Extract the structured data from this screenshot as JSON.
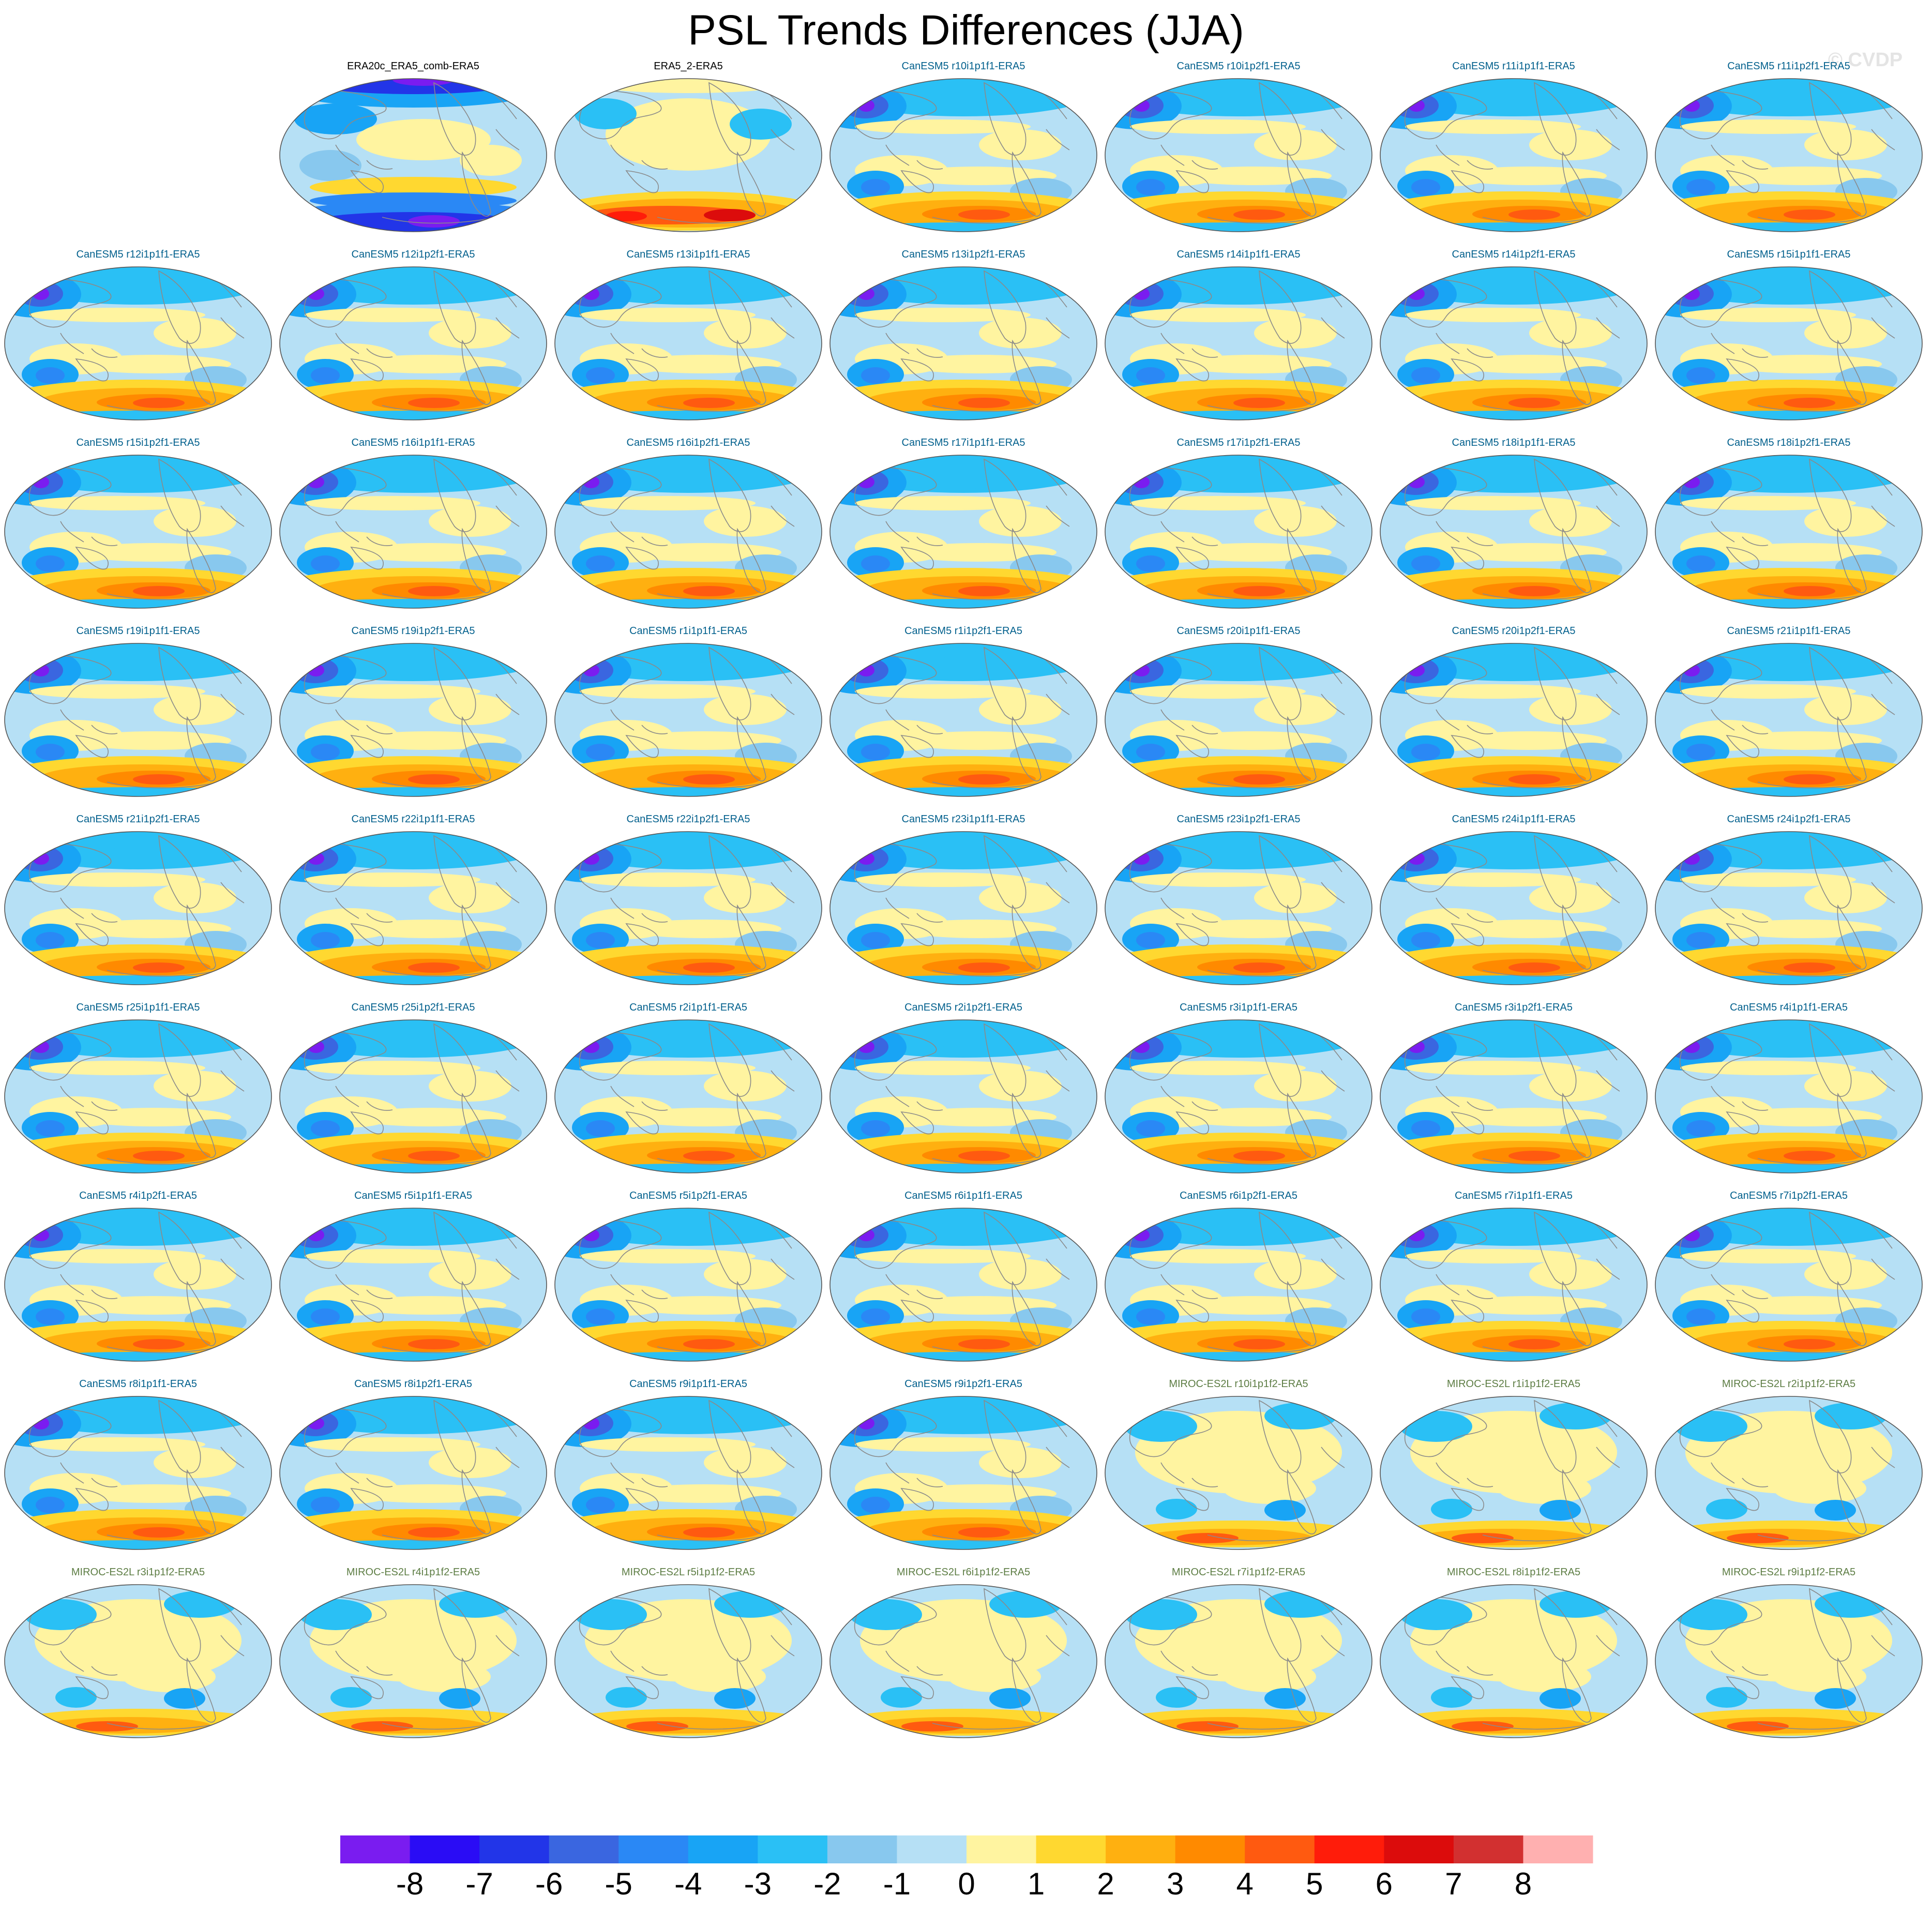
{
  "title": "PSL Trends Differences (JJA)",
  "watermark": "© CVDP",
  "colors": {
    "obs_label": "#000000",
    "canesm5_label": "#005f8c",
    "miroc_label": "#5d7d44",
    "coast": "#8a8a8a"
  },
  "chart_data": {
    "type": "heatmap",
    "title": "PSL Trends Differences (JJA)",
    "layout": {
      "rows": 9,
      "cols": 7,
      "first_row_empty_cells": 1
    },
    "panels": [
      {
        "label": "ERA20c_ERA5_comb-ERA5",
        "group": "obs",
        "pattern": "era20c"
      },
      {
        "label": "ERA5_2-ERA5",
        "group": "obs",
        "pattern": "era5_2"
      },
      {
        "label": "CanESM5 r10i1p1f1-ERA5",
        "group": "canesm5",
        "pattern": "canesm5"
      },
      {
        "label": "CanESM5 r10i1p2f1-ERA5",
        "group": "canesm5",
        "pattern": "canesm5"
      },
      {
        "label": "CanESM5 r11i1p1f1-ERA5",
        "group": "canesm5",
        "pattern": "canesm5"
      },
      {
        "label": "CanESM5 r11i1p2f1-ERA5",
        "group": "canesm5",
        "pattern": "canesm5"
      },
      {
        "label": "CanESM5 r12i1p1f1-ERA5",
        "group": "canesm5",
        "pattern": "canesm5"
      },
      {
        "label": "CanESM5 r12i1p2f1-ERA5",
        "group": "canesm5",
        "pattern": "canesm5"
      },
      {
        "label": "CanESM5 r13i1p1f1-ERA5",
        "group": "canesm5",
        "pattern": "canesm5"
      },
      {
        "label": "CanESM5 r13i1p2f1-ERA5",
        "group": "canesm5",
        "pattern": "canesm5"
      },
      {
        "label": "CanESM5 r14i1p1f1-ERA5",
        "group": "canesm5",
        "pattern": "canesm5"
      },
      {
        "label": "CanESM5 r14i1p2f1-ERA5",
        "group": "canesm5",
        "pattern": "canesm5"
      },
      {
        "label": "CanESM5 r15i1p1f1-ERA5",
        "group": "canesm5",
        "pattern": "canesm5"
      },
      {
        "label": "CanESM5 r15i1p2f1-ERA5",
        "group": "canesm5",
        "pattern": "canesm5"
      },
      {
        "label": "CanESM5 r16i1p1f1-ERA5",
        "group": "canesm5",
        "pattern": "canesm5"
      },
      {
        "label": "CanESM5 r16i1p2f1-ERA5",
        "group": "canesm5",
        "pattern": "canesm5"
      },
      {
        "label": "CanESM5 r17i1p1f1-ERA5",
        "group": "canesm5",
        "pattern": "canesm5"
      },
      {
        "label": "CanESM5 r17i1p2f1-ERA5",
        "group": "canesm5",
        "pattern": "canesm5"
      },
      {
        "label": "CanESM5 r18i1p1f1-ERA5",
        "group": "canesm5",
        "pattern": "canesm5"
      },
      {
        "label": "CanESM5 r18i1p2f1-ERA5",
        "group": "canesm5",
        "pattern": "canesm5"
      },
      {
        "label": "CanESM5 r19i1p1f1-ERA5",
        "group": "canesm5",
        "pattern": "canesm5"
      },
      {
        "label": "CanESM5 r19i1p2f1-ERA5",
        "group": "canesm5",
        "pattern": "canesm5"
      },
      {
        "label": "CanESM5 r1i1p1f1-ERA5",
        "group": "canesm5",
        "pattern": "canesm5"
      },
      {
        "label": "CanESM5 r1i1p2f1-ERA5",
        "group": "canesm5",
        "pattern": "canesm5"
      },
      {
        "label": "CanESM5 r20i1p1f1-ERA5",
        "group": "canesm5",
        "pattern": "canesm5"
      },
      {
        "label": "CanESM5 r20i1p2f1-ERA5",
        "group": "canesm5",
        "pattern": "canesm5"
      },
      {
        "label": "CanESM5 r21i1p1f1-ERA5",
        "group": "canesm5",
        "pattern": "canesm5"
      },
      {
        "label": "CanESM5 r21i1p2f1-ERA5",
        "group": "canesm5",
        "pattern": "canesm5"
      },
      {
        "label": "CanESM5 r22i1p1f1-ERA5",
        "group": "canesm5",
        "pattern": "canesm5"
      },
      {
        "label": "CanESM5 r22i1p2f1-ERA5",
        "group": "canesm5",
        "pattern": "canesm5"
      },
      {
        "label": "CanESM5 r23i1p1f1-ERA5",
        "group": "canesm5",
        "pattern": "canesm5"
      },
      {
        "label": "CanESM5 r23i1p2f1-ERA5",
        "group": "canesm5",
        "pattern": "canesm5"
      },
      {
        "label": "CanESM5 r24i1p1f1-ERA5",
        "group": "canesm5",
        "pattern": "canesm5"
      },
      {
        "label": "CanESM5 r24i1p2f1-ERA5",
        "group": "canesm5",
        "pattern": "canesm5"
      },
      {
        "label": "CanESM5 r25i1p1f1-ERA5",
        "group": "canesm5",
        "pattern": "canesm5"
      },
      {
        "label": "CanESM5 r25i1p2f1-ERA5",
        "group": "canesm5",
        "pattern": "canesm5"
      },
      {
        "label": "CanESM5 r2i1p1f1-ERA5",
        "group": "canesm5",
        "pattern": "canesm5"
      },
      {
        "label": "CanESM5 r2i1p2f1-ERA5",
        "group": "canesm5",
        "pattern": "canesm5"
      },
      {
        "label": "CanESM5 r3i1p1f1-ERA5",
        "group": "canesm5",
        "pattern": "canesm5"
      },
      {
        "label": "CanESM5 r3i1p2f1-ERA5",
        "group": "canesm5",
        "pattern": "canesm5"
      },
      {
        "label": "CanESM5 r4i1p1f1-ERA5",
        "group": "canesm5",
        "pattern": "canesm5"
      },
      {
        "label": "CanESM5 r4i1p2f1-ERA5",
        "group": "canesm5",
        "pattern": "canesm5"
      },
      {
        "label": "CanESM5 r5i1p1f1-ERA5",
        "group": "canesm5",
        "pattern": "canesm5"
      },
      {
        "label": "CanESM5 r5i1p2f1-ERA5",
        "group": "canesm5",
        "pattern": "canesm5"
      },
      {
        "label": "CanESM5 r6i1p1f1-ERA5",
        "group": "canesm5",
        "pattern": "canesm5"
      },
      {
        "label": "CanESM5 r6i1p2f1-ERA5",
        "group": "canesm5",
        "pattern": "canesm5"
      },
      {
        "label": "CanESM5 r7i1p1f1-ERA5",
        "group": "canesm5",
        "pattern": "canesm5"
      },
      {
        "label": "CanESM5 r7i1p2f1-ERA5",
        "group": "canesm5",
        "pattern": "canesm5"
      },
      {
        "label": "CanESM5 r8i1p1f1-ERA5",
        "group": "canesm5",
        "pattern": "canesm5"
      },
      {
        "label": "CanESM5 r8i1p2f1-ERA5",
        "group": "canesm5",
        "pattern": "canesm5"
      },
      {
        "label": "CanESM5 r9i1p1f1-ERA5",
        "group": "canesm5",
        "pattern": "canesm5"
      },
      {
        "label": "CanESM5 r9i1p2f1-ERA5",
        "group": "canesm5",
        "pattern": "canesm5"
      },
      {
        "label": "MIROC-ES2L r10i1p1f2-ERA5",
        "group": "miroc",
        "pattern": "miroc"
      },
      {
        "label": "MIROC-ES2L r1i1p1f2-ERA5",
        "group": "miroc",
        "pattern": "miroc"
      },
      {
        "label": "MIROC-ES2L r2i1p1f2-ERA5",
        "group": "miroc",
        "pattern": "miroc"
      },
      {
        "label": "MIROC-ES2L r3i1p1f2-ERA5",
        "group": "miroc",
        "pattern": "miroc"
      },
      {
        "label": "MIROC-ES2L r4i1p1f2-ERA5",
        "group": "miroc",
        "pattern": "miroc"
      },
      {
        "label": "MIROC-ES2L r5i1p1f2-ERA5",
        "group": "miroc",
        "pattern": "miroc"
      },
      {
        "label": "MIROC-ES2L r6i1p1f2-ERA5",
        "group": "miroc",
        "pattern": "miroc"
      },
      {
        "label": "MIROC-ES2L r7i1p1f2-ERA5",
        "group": "miroc",
        "pattern": "miroc"
      },
      {
        "label": "MIROC-ES2L r8i1p1f2-ERA5",
        "group": "miroc",
        "pattern": "miroc"
      },
      {
        "label": "MIROC-ES2L r9i1p1f2-ERA5",
        "group": "miroc",
        "pattern": "miroc"
      }
    ],
    "colorbar": {
      "ticks": [
        "-8",
        "-7",
        "-6",
        "-5",
        "-4",
        "-3",
        "-2",
        "-1",
        "0",
        "1",
        "2",
        "3",
        "4",
        "5",
        "6",
        "7",
        "8"
      ],
      "colors": [
        "#7a1cf0",
        "#2a0cf5",
        "#2235e8",
        "#3a66e0",
        "#2a88f5",
        "#18a4f5",
        "#2ac0f5",
        "#88c8ee",
        "#b6e0f5",
        "#fff4a0",
        "#ffd830",
        "#ffb010",
        "#ff8a00",
        "#ff5a10",
        "#ff1c0a",
        "#dc0c0c",
        "#d23030",
        "#ffb0b0"
      ]
    }
  }
}
